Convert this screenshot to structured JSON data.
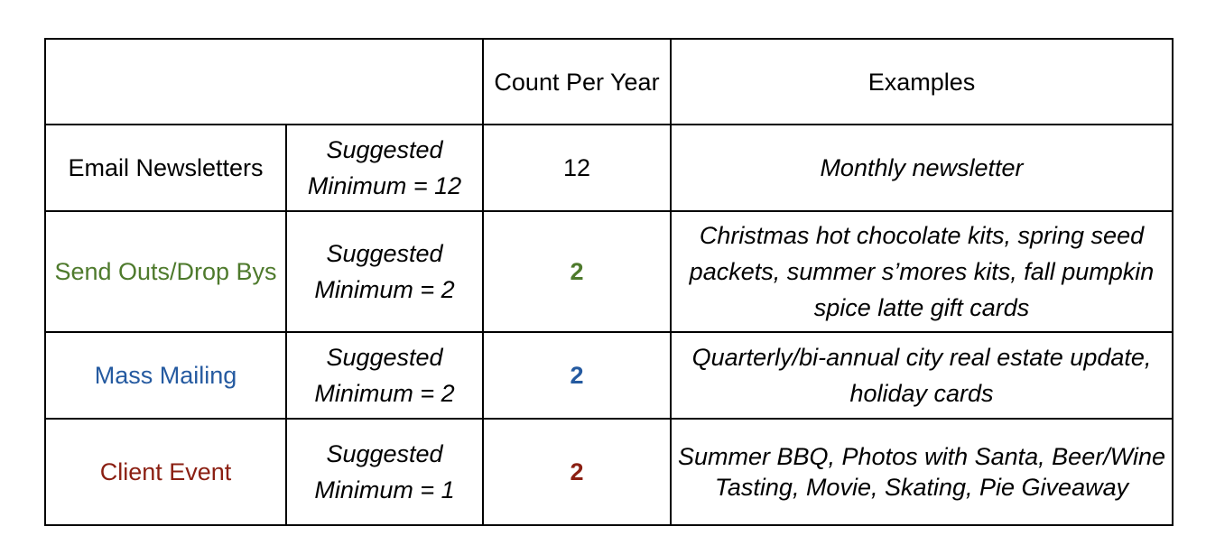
{
  "table": {
    "headers": {
      "blank": "",
      "count": "Count Per Year",
      "examples": "Examples"
    },
    "rows": [
      {
        "category": "Email Newsletters",
        "color": "#000000",
        "suggested": "Suggested Minimum = 12",
        "count": "12",
        "examples": "Monthly newsletter"
      },
      {
        "category": "Send Outs/Drop Bys",
        "color": "#4e7a2c",
        "suggested": "Suggested Minimum = 2",
        "count": "2",
        "examples": "Christmas hot chocolate kits, spring seed packets, summer s’mores kits, fall pumpkin spice latte gift cards"
      },
      {
        "category": "Mass Mailing",
        "color": "#255aa0",
        "suggested": "Suggested Minimum = 2",
        "count": "2",
        "examples": "Quarterly/bi-annual city real estate update, holiday cards"
      },
      {
        "category": "Client Event",
        "color": "#8b1f12",
        "suggested": "Suggested Minimum = 1",
        "count": "2",
        "examples": "Summer BBQ, Photos with Santa, Beer/Wine Tasting, Movie, Skating, Pie Giveaway"
      }
    ]
  }
}
